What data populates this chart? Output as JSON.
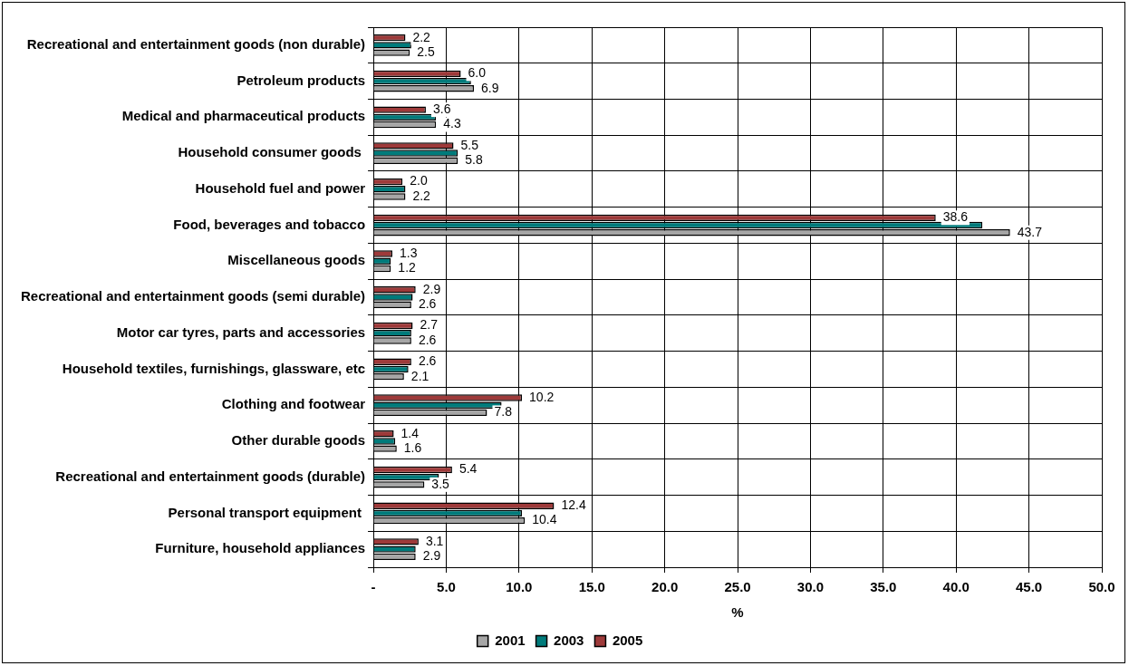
{
  "chart_data": {
    "type": "bar",
    "orientation": "horizontal",
    "xlabel": "%",
    "categories": [
      "Recreational and entertainment goods (non durable)",
      "Petroleum products",
      "Medical and pharmaceutical products",
      "Household consumer goods ",
      "Household fuel and power",
      "Food, beverages and tobacco",
      "Miscellaneous goods",
      "Recreational and entertainment goods (semi durable)",
      "Motor car tyres, parts and accessories",
      "Household textiles, furnishings, glassware, etc",
      "Clothing and footwear",
      "Other durable goods",
      "Recreational and entertainment goods (durable)",
      "Personal transport equipment ",
      "Furniture, household appliances"
    ],
    "series": [
      {
        "name": "2001",
        "color": "#a6a6a6",
        "values": [
          2.5,
          6.9,
          4.3,
          5.8,
          2.2,
          43.7,
          1.2,
          2.6,
          2.6,
          2.1,
          7.8,
          1.6,
          3.5,
          10.4,
          2.9
        ],
        "value_labels": [
          "2.5",
          "6.9",
          "4.3",
          "5.8",
          "2.2",
          "43.7",
          "1.2",
          "2.6",
          "2.6",
          "2.1",
          "7.8",
          "1.6",
          "3.5",
          "10.4",
          "2.9"
        ]
      },
      {
        "name": "2003",
        "color": "#007b7b",
        "values": [
          2.6,
          6.7,
          4.3,
          5.8,
          2.2,
          41.8,
          1.2,
          2.7,
          2.6,
          2.4,
          8.8,
          1.5,
          4.5,
          10.2,
          2.9
        ]
      },
      {
        "name": "2005",
        "color": "#9e3a3a",
        "values": [
          2.2,
          6.0,
          3.6,
          5.5,
          2.0,
          38.6,
          1.3,
          2.9,
          2.7,
          2.6,
          10.2,
          1.4,
          5.4,
          12.4,
          3.1
        ],
        "value_labels": [
          "2.2",
          "6.0",
          "3.6",
          "5.5",
          "2.0",
          "38.6",
          "1.3",
          "2.9",
          "2.7",
          "2.6",
          "10.2",
          "1.4",
          "5.4",
          "12.4",
          "3.1"
        ]
      }
    ],
    "xlim": [
      0,
      50
    ],
    "xticks": [
      {
        "value": 0,
        "label": "-"
      },
      {
        "value": 5,
        "label": "5.0"
      },
      {
        "value": 10,
        "label": "10.0"
      },
      {
        "value": 15,
        "label": "15.0"
      },
      {
        "value": 20,
        "label": "20.0"
      },
      {
        "value": 25,
        "label": "25.0"
      },
      {
        "value": 30,
        "label": "30.0"
      },
      {
        "value": 35,
        "label": "35.0"
      },
      {
        "value": 40,
        "label": "40.0"
      },
      {
        "value": 45,
        "label": "45.0"
      },
      {
        "value": 50,
        "label": "50.0"
      }
    ],
    "grid": true,
    "legend": "bottom"
  }
}
